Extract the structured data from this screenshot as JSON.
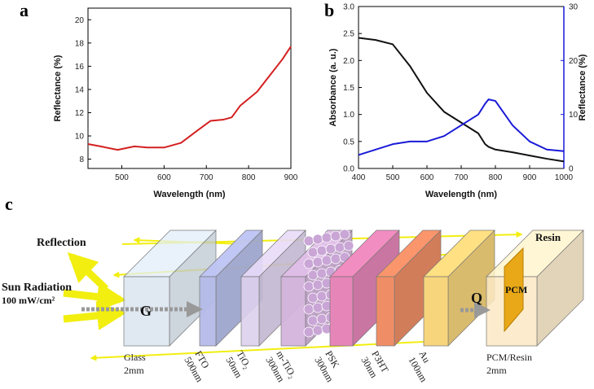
{
  "chart_data": [
    {
      "type": "line",
      "panel": "a",
      "x_label": "Wavelength (nm)",
      "y_label": "Reflectance (%)",
      "x": [
        420,
        450,
        490,
        530,
        560,
        600,
        640,
        680,
        710,
        740,
        760,
        780,
        800,
        820,
        850,
        880,
        900
      ],
      "values": [
        9.3,
        9.1,
        8.8,
        9.1,
        9.0,
        9.0,
        9.4,
        10.5,
        11.3,
        11.4,
        11.6,
        12.6,
        13.2,
        13.8,
        15.2,
        16.6,
        17.7
      ],
      "color": "#d42020",
      "xlim": [
        420,
        900
      ],
      "xticks": [
        500,
        600,
        700,
        800,
        900
      ],
      "ylim": [
        7.2,
        21
      ],
      "yticks": [
        8,
        10,
        12,
        14,
        16,
        18,
        20
      ]
    },
    {
      "type": "line",
      "panel": "b",
      "x_label": "Wavelength (nm)",
      "y_label": "Absorbance (a. u.)",
      "y2_label": "Reflectance (%)",
      "x": [
        400,
        450,
        500,
        550,
        600,
        650,
        700,
        750,
        770,
        780,
        800,
        850,
        900,
        950,
        1000
      ],
      "series": [
        {
          "color": "#111111",
          "values": [
            2.42,
            2.38,
            2.3,
            1.9,
            1.4,
            1.05,
            0.85,
            0.65,
            0.45,
            0.4,
            0.35,
            0.3,
            0.24,
            0.18,
            0.13
          ]
        },
        {
          "color": "#1a1ad8",
          "axis": "y2",
          "values": [
            2.5,
            3.5,
            4.5,
            5,
            5,
            6,
            8,
            10,
            12,
            12.8,
            12.5,
            8,
            5,
            3.5,
            3.2
          ]
        }
      ],
      "xlim": [
        400,
        1000
      ],
      "xticks": [
        400,
        500,
        600,
        700,
        800,
        900,
        1000
      ],
      "ylim": [
        0,
        3
      ],
      "yticks": [
        {
          "value": 0,
          "label": "0.0"
        },
        0.5,
        {
          "value": 1,
          "label": "1.0"
        },
        1.5,
        {
          "value": 2,
          "label": "2.0"
        },
        2.5,
        {
          "value": 3,
          "label": "3.0"
        }
      ],
      "y2lim": [
        0,
        30
      ],
      "y2ticks": [
        0,
        10,
        20,
        30
      ]
    }
  ],
  "diagram": {
    "panel": "c",
    "reflection": "Reflection",
    "sun": "Sun Radiation",
    "power": "100 mW/cm²",
    "g": "G",
    "q": "Q",
    "resin": "Resin",
    "pcm": "PCM",
    "layers": [
      {
        "name": "Glass",
        "thickness": "2mm"
      },
      {
        "name": "FTO",
        "thickness": "500nm"
      },
      {
        "name": "TiO₂",
        "thickness": "50nm"
      },
      {
        "name": "m-TiO₂",
        "thickness": "300nm"
      },
      {
        "name": "PSK",
        "thickness": "300nm"
      },
      {
        "name": "P3HT",
        "thickness": "30nm"
      },
      {
        "name": "Au",
        "thickness": "100nm"
      },
      {
        "name": "PCM/Resin",
        "thickness": "2mm"
      }
    ]
  }
}
